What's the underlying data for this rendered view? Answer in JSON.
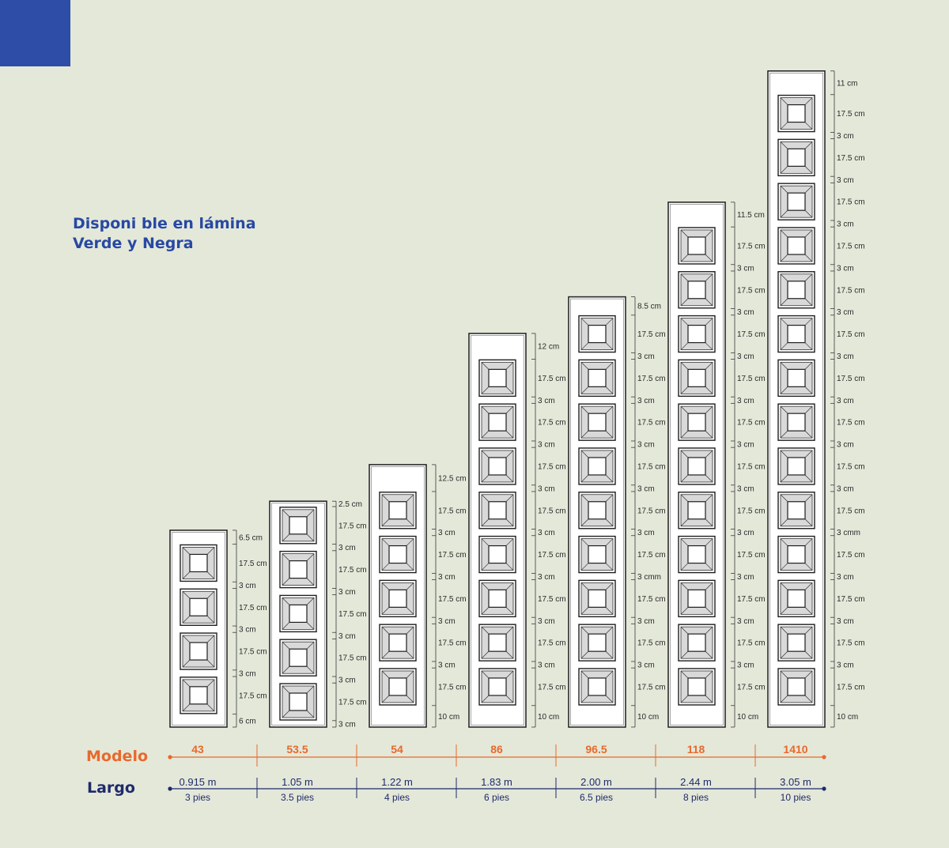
{
  "heading": {
    "line1": "Disponi ble en lámina",
    "line2": "Verde y Negra"
  },
  "colors": {
    "background": "#e4e8d9",
    "accent_blue": "#2e4da7",
    "heading_blue": "#2748a3",
    "modelo_orange": "#e8692c",
    "largo_navy": "#1f2a6b",
    "panel_fill": "#ffffff",
    "panel_outline": "#2a2a2a"
  },
  "row_labels": {
    "modelo": "Modelo",
    "largo": "Largo"
  },
  "doors": [
    {
      "model": "43",
      "length_m": "0.915 m",
      "length_ft": "3 pies",
      "panels": 4,
      "dims": [
        "6.5 cm",
        "17.5 cm",
        "3 cm",
        "17.5 cm",
        "3 cm",
        "17.5 cm",
        "3 cm",
        "17.5 cm",
        "6 cm"
      ]
    },
    {
      "model": "53.5",
      "length_m": "1.05 m",
      "length_ft": "3.5 pies",
      "panels": 5,
      "dims": [
        "2.5 cm",
        "17.5 cm",
        "3 cm",
        "17.5 cm",
        "3 cm",
        "17.5 cm",
        "3 cm",
        "17.5 cm",
        "3 cm",
        "17.5 cm",
        "3 cm"
      ]
    },
    {
      "model": "54",
      "length_m": "1.22 m",
      "length_ft": "4 pies",
      "panels": 5,
      "dims": [
        "12.5 cm",
        "17.5 cm",
        "3 cm",
        "17.5 cm",
        "3 cm",
        "17.5 cm",
        "3 cm",
        "17.5 cm",
        "3 cm",
        "17.5 cm",
        "10 cm"
      ]
    },
    {
      "model": "86",
      "length_m": "1.83 m",
      "length_ft": "6 pies",
      "panels": 8,
      "dims": [
        "12 cm",
        "17.5 cm",
        "3 cm",
        "17.5 cm",
        "3 cm",
        "17.5 cm",
        "3 cm",
        "17.5 cm",
        "3 cm",
        "17.5 cm",
        "3 cm",
        "17.5 cm",
        "3 cm",
        "17.5 cm",
        "3 cm",
        "17.5 cm",
        "10 cm"
      ]
    },
    {
      "model": "96.5",
      "length_m": "2.00 m",
      "length_ft": "6.5 pies",
      "panels": 9,
      "dims": [
        "8.5 cm",
        "17.5 cm",
        "3 cm",
        "17.5 cm",
        "3 cm",
        "17.5 cm",
        "3 cm",
        "17.5 cm",
        "3 cm",
        "17.5 cm",
        "3 cm",
        "17.5 cm",
        "3 cmm",
        "17.5 cm",
        "3 cm",
        "17.5 cm",
        "3 cm",
        "17.5 cm",
        "10 cm"
      ]
    },
    {
      "model": "118",
      "length_m": "2.44 m",
      "length_ft": "8 pies",
      "panels": 11,
      "dims": [
        "11.5 cm",
        "17.5 cm",
        "3 cm",
        "17.5 cm",
        "3 cm",
        "17.5 cm",
        "3 cm",
        "17.5 cm",
        "3 cm",
        "17.5 cm",
        "3 cm",
        "17.5 cm",
        "3 cm",
        "17.5 cm",
        "3 cm",
        "17.5 cm",
        "3 cm",
        "17.5 cm",
        "3 cm",
        "17.5 cm",
        "3 cm",
        "17.5 cm",
        "10 cm"
      ]
    },
    {
      "model": "1410",
      "length_m": "3.05 m",
      "length_ft": "10 pies",
      "panels": 14,
      "dims": [
        "11 cm",
        "17.5 cm",
        "3 cm",
        "17.5 cm",
        "3 cm",
        "17.5 cm",
        "3 cm",
        "17.5 cm",
        "3 cm",
        "17.5 cm",
        "3 cm",
        "17.5 cm",
        "3 cm",
        "17.5 cm",
        "3 cm",
        "17.5 cm",
        "3 cm",
        "17.5 cm",
        "3 cm",
        "17.5 cm",
        "3 cmm",
        "17.5 cm",
        "3 cm",
        "17.5 cm",
        "3 cm",
        "17.5 cm",
        "3 cm",
        "17.5 cm",
        "10 cm"
      ]
    }
  ]
}
